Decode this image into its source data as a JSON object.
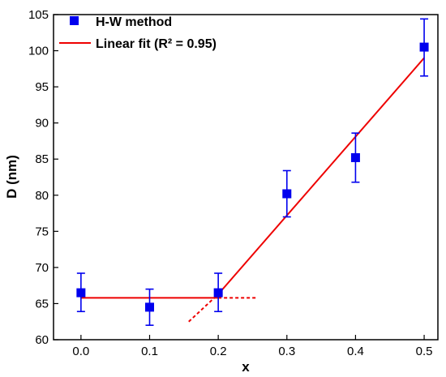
{
  "chart_data": {
    "type": "scatter",
    "xlabel": "x",
    "ylabel": "D (nm)",
    "xlim": [
      -0.04,
      0.52
    ],
    "ylim": [
      60,
      105
    ],
    "xticks": [
      0.0,
      0.1,
      0.2,
      0.3,
      0.4,
      0.5
    ],
    "xtick_labels": [
      "0.0",
      "0.1",
      "0.2",
      "0.3",
      "0.4",
      "0.5"
    ],
    "yticks": [
      60,
      65,
      70,
      75,
      80,
      85,
      90,
      95,
      100,
      105
    ],
    "ytick_labels": [
      "60",
      "65",
      "70",
      "75",
      "80",
      "85",
      "90",
      "95",
      "100",
      "105"
    ],
    "grid": false,
    "legend_position": "top-left",
    "series": [
      {
        "name": "H-W method",
        "kind": "scatter",
        "marker": "square",
        "color": "#0000ee",
        "x": [
          0.0,
          0.1,
          0.2,
          0.3,
          0.4,
          0.5
        ],
        "y": [
          66.5,
          64.5,
          66.5,
          80.2,
          85.2,
          100.5
        ],
        "yerr_low": [
          63.9,
          62.0,
          63.9,
          77.0,
          81.8,
          96.5
        ],
        "yerr_high": [
          69.2,
          67.0,
          69.2,
          83.4,
          88.6,
          104.4
        ]
      },
      {
        "name": "Linear fit (R² = 0.95)",
        "kind": "line",
        "color": "#ee0000",
        "segments": [
          {
            "style": "solid",
            "points": [
              [
                0.0,
                65.8
              ],
              [
                0.2,
                65.8
              ]
            ]
          },
          {
            "style": "dashed",
            "points": [
              [
                0.2,
                65.8
              ],
              [
                0.255,
                65.8
              ]
            ]
          },
          {
            "style": "solid",
            "points": [
              [
                0.2,
                66.3
              ],
              [
                0.5,
                99.0
              ]
            ]
          },
          {
            "style": "dashed",
            "points": [
              [
                0.157,
                62.5
              ],
              [
                0.2,
                66.3
              ]
            ]
          }
        ]
      }
    ]
  }
}
